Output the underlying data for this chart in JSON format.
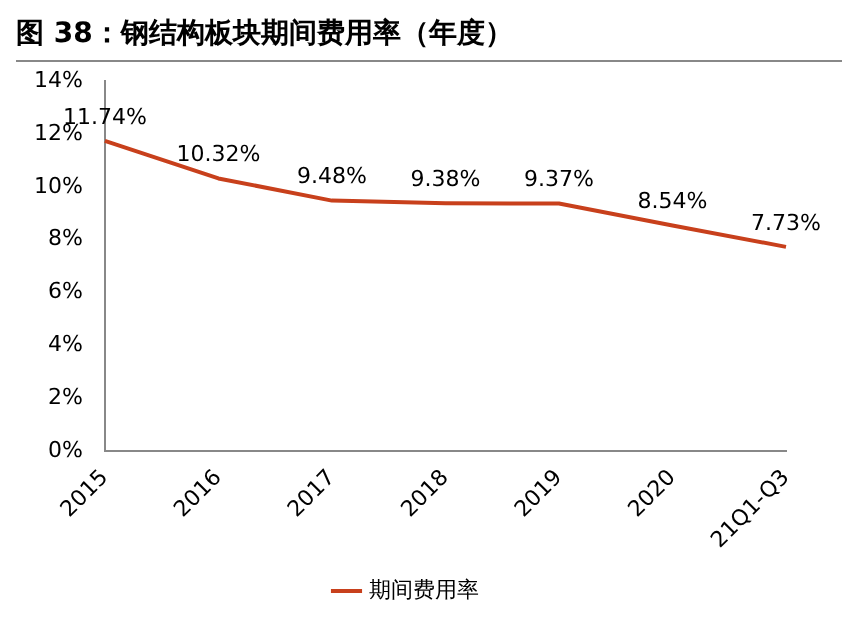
{
  "chart_data": {
    "type": "line",
    "title": "图 38：钢结构板块期间费用率（年度）",
    "categories": [
      "2015",
      "2016",
      "2017",
      "2018",
      "2019",
      "2020",
      "21Q1-Q3"
    ],
    "series": [
      {
        "name": "期间费用率",
        "color": "#c8401c",
        "values": [
          11.74,
          10.32,
          9.48,
          9.38,
          9.37,
          8.54,
          7.73
        ],
        "value_labels": [
          "11.74%",
          "10.32%",
          "9.48%",
          "9.38%",
          "9.37%",
          "8.54%",
          "7.73%"
        ]
      }
    ],
    "ylim": [
      0,
      14
    ],
    "yticks": [
      {
        "value": 0,
        "label": "0%"
      },
      {
        "value": 2,
        "label": "2%"
      },
      {
        "value": 4,
        "label": "4%"
      },
      {
        "value": 6,
        "label": "6%"
      },
      {
        "value": 8,
        "label": "8%"
      },
      {
        "value": 10,
        "label": "10%"
      },
      {
        "value": 12,
        "label": "12%"
      },
      {
        "value": 14,
        "label": "14%"
      }
    ],
    "legend": "bottom",
    "marker": "none",
    "line_style": "solid"
  }
}
